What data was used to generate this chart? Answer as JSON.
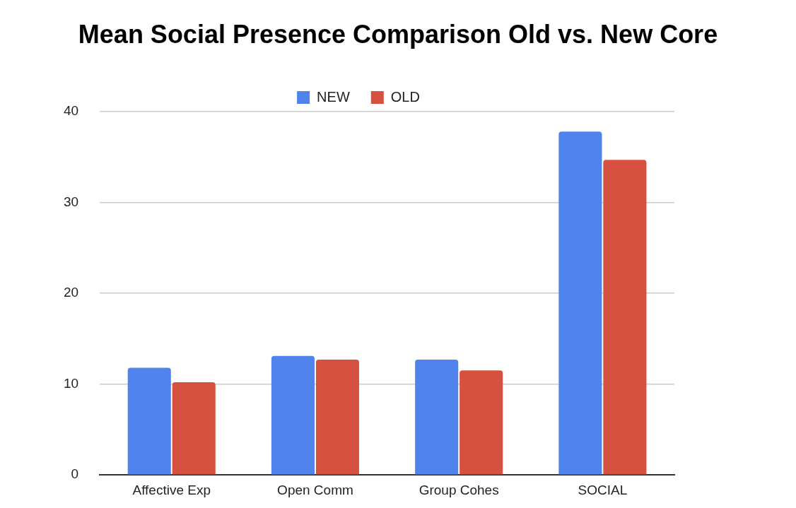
{
  "chart_data": {
    "type": "bar",
    "title": "Mean Social Presence Comparison Old vs. New Core",
    "categories": [
      "Affective Exp",
      "Open Comm",
      "Group Cohes",
      "SOCIAL"
    ],
    "series": [
      {
        "name": "NEW",
        "color": "#5084ec",
        "values": [
          11.8,
          13.1,
          12.7,
          37.8
        ]
      },
      {
        "name": "OLD",
        "color": "#d75140",
        "values": [
          10.2,
          12.7,
          11.5,
          34.7
        ]
      }
    ],
    "ylim": [
      0,
      40
    ],
    "yticks": [
      0,
      10,
      20,
      30,
      40
    ],
    "grid": "y",
    "legend": "top"
  }
}
